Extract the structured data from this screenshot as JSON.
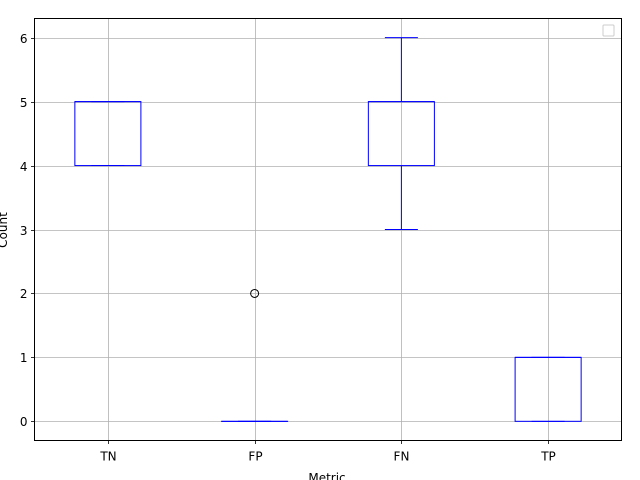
{
  "chart_data": {
    "type": "box",
    "categories": [
      "TN",
      "FP",
      "FN",
      "TP"
    ],
    "boxes": [
      {
        "category": "TN",
        "whisker_low": 4,
        "q1": 4,
        "median": 5,
        "q3": 5,
        "whisker_high": 5,
        "outliers": []
      },
      {
        "category": "FP",
        "whisker_low": 0,
        "q1": 0,
        "median": 0,
        "q3": 0,
        "whisker_high": 0,
        "outliers": [
          2
        ]
      },
      {
        "category": "FN",
        "whisker_low": 3,
        "q1": 4,
        "median": 5,
        "q3": 5,
        "whisker_high": 6,
        "outliers": []
      },
      {
        "category": "TP",
        "whisker_low": 0,
        "q1": 0,
        "median": 1,
        "q3": 1,
        "whisker_high": 1,
        "outliers": []
      }
    ],
    "xlabel": "Metric",
    "ylabel": "Count",
    "ylim": [
      -0.3,
      6.3
    ],
    "yticks": [
      0,
      1,
      2,
      3,
      4,
      5,
      6
    ],
    "grid": true,
    "legend": {
      "placement": "top-right",
      "entries": []
    },
    "colors": {
      "box": "#0000ff",
      "grid": "#b0b0b0",
      "outlier_edge": "#000000"
    }
  }
}
